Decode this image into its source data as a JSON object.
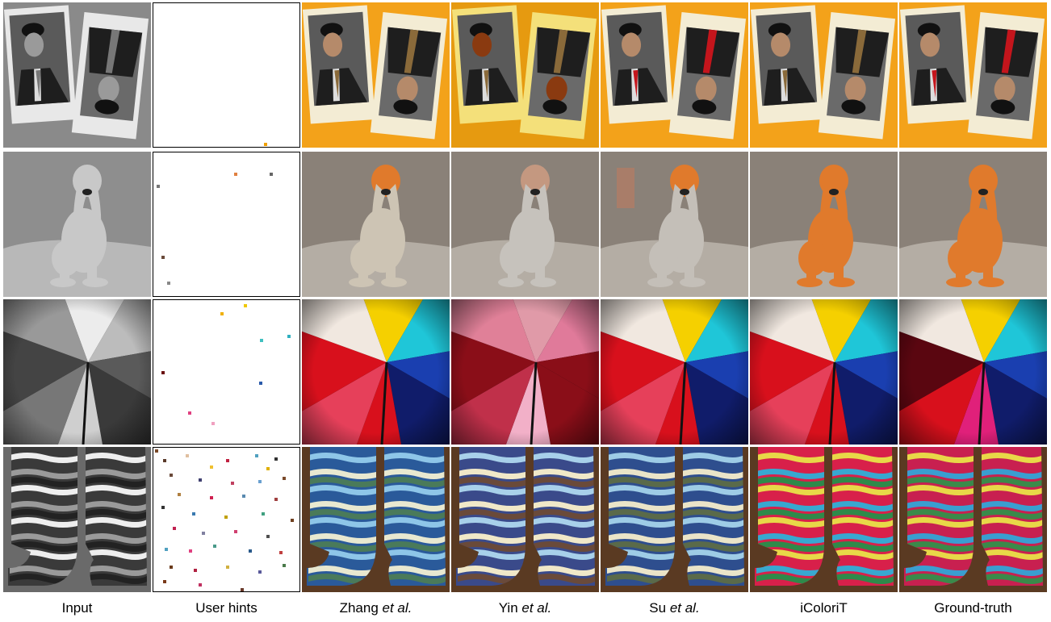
{
  "columns": [
    {
      "id": "input",
      "label": "Input",
      "suffix": ""
    },
    {
      "id": "hints",
      "label": "User hints",
      "suffix": ""
    },
    {
      "id": "zhang",
      "label": "Zhang",
      "suffix": "et al."
    },
    {
      "id": "yin",
      "label": "Yin",
      "suffix": "et al."
    },
    {
      "id": "su",
      "label": "Su",
      "suffix": "et al."
    },
    {
      "id": "icolorit",
      "label": "iColoriT",
      "suffix": ""
    },
    {
      "id": "gt",
      "label": "Ground-truth",
      "suffix": ""
    }
  ],
  "rows": [
    {
      "id": "portrait-photos"
    },
    {
      "id": "dog-statue"
    },
    {
      "id": "umbrella"
    },
    {
      "id": "socks"
    }
  ],
  "colors": {
    "orange_bg": "#f3a21a",
    "dog_orange": "#e07a2c",
    "umbrella_yellow": "#f5d000",
    "umbrella_cyan": "#1fc6d8",
    "umbrella_red": "#d8101c",
    "umbrella_blue": "#1a3fb0",
    "umbrella_pink": "#e0207a"
  }
}
